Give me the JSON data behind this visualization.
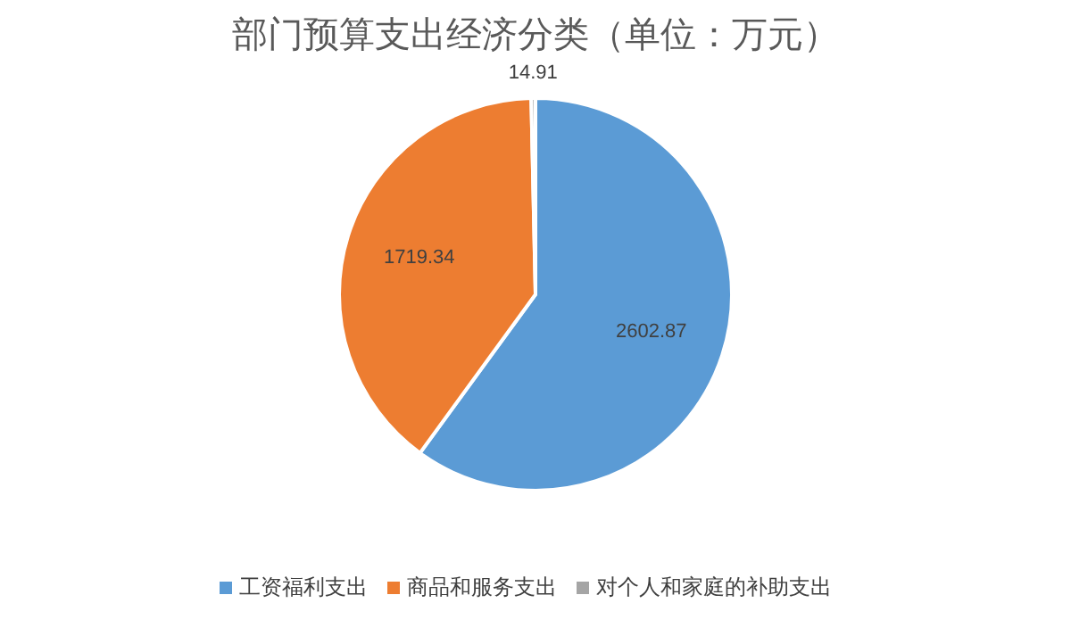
{
  "chart_data": {
    "type": "pie",
    "title": "部门预算支出经济分类（单位：万元）",
    "categories": [
      "工资福利支出",
      "商品和服务支出",
      "对个人和家庭的补助支出"
    ],
    "values": [
      2602.87,
      1719.34,
      14.91
    ],
    "colors": [
      "#5b9bd5",
      "#ed7d31",
      "#a5a5a5"
    ],
    "data_labels": true,
    "legend": "bottom"
  }
}
